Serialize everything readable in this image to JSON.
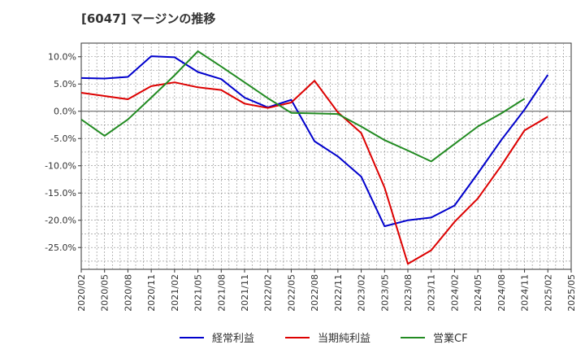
{
  "chart_data": {
    "type": "line",
    "title": "[6047]  マージンの推移",
    "xlabel": "",
    "ylabel": "",
    "categories": [
      "2020/02",
      "2020/05",
      "2020/08",
      "2020/11",
      "2021/02",
      "2021/05",
      "2021/08",
      "2021/11",
      "2022/02",
      "2022/05",
      "2022/08",
      "2022/11",
      "2023/02",
      "2023/05",
      "2023/08",
      "2023/11",
      "2024/02",
      "2024/05",
      "2024/08",
      "2024/11",
      "2025/02",
      "2025/05"
    ],
    "ylim": [
      -29,
      12.5
    ],
    "yticks": [
      10,
      5,
      0,
      -5,
      -10,
      -15,
      -20,
      -25
    ],
    "ytick_labels": [
      "10.0%",
      "5.0%",
      "0.0%",
      "-5.0%",
      "-10.0%",
      "-15.0%",
      "-20.0%",
      "-25.0%"
    ],
    "grid": true,
    "legend_position": "bottom",
    "series": [
      {
        "name": "経常利益",
        "color": "#0000cc",
        "values": [
          6.1,
          6.0,
          6.3,
          10.1,
          9.9,
          7.2,
          5.9,
          2.5,
          0.7,
          2.1,
          -5.5,
          -8.3,
          -12.0,
          -21.1,
          -20.0,
          -19.5,
          -17.3,
          -11.4,
          -5.3,
          0.3,
          6.7,
          null
        ]
      },
      {
        "name": "当期純利益",
        "color": "#dd0000",
        "values": [
          3.4,
          2.8,
          2.2,
          4.6,
          5.3,
          4.4,
          3.9,
          1.4,
          0.6,
          1.6,
          5.6,
          -0.2,
          -4.0,
          -14.0,
          -28.0,
          -25.5,
          -20.3,
          -16.0,
          -10.0,
          -3.5,
          -1.0,
          null
        ]
      },
      {
        "name": "営業CF",
        "color": "#228b22",
        "values": [
          -1.5,
          -4.5,
          -1.5,
          2.5,
          6.6,
          11.0,
          8.2,
          5.3,
          2.4,
          -0.3,
          -0.4,
          -0.5,
          -2.8,
          -5.3,
          -7.2,
          -9.2,
          -6.0,
          -2.8,
          -0.4,
          2.3,
          null,
          null
        ]
      }
    ]
  }
}
